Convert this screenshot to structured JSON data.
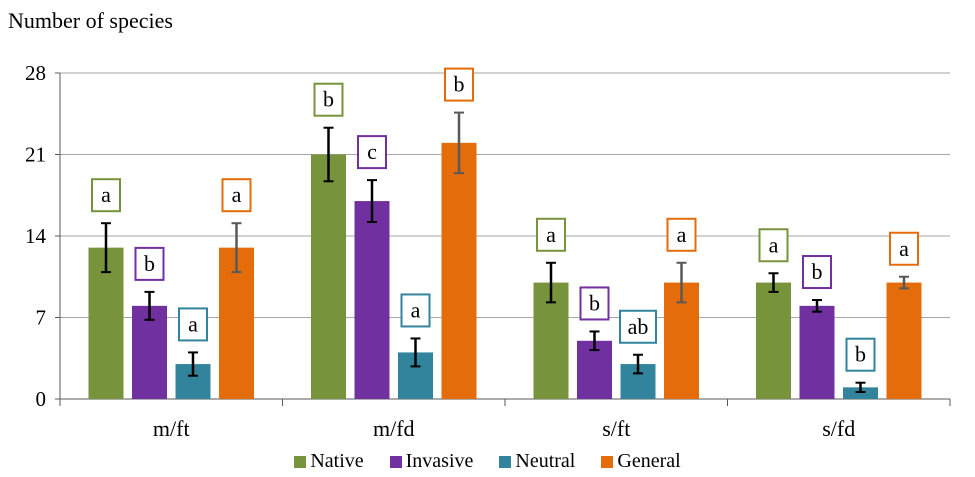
{
  "chart_data": {
    "type": "bar",
    "ylabel": "Number of species",
    "xlabel": "",
    "ylim": [
      0,
      28
    ],
    "yticks": [
      0,
      7,
      14,
      21,
      28
    ],
    "grid": true,
    "legend_position": "bottom",
    "categories": [
      "m/ft",
      "m/fd",
      "s/ft",
      "s/fd"
    ],
    "series": [
      {
        "name": "Native",
        "color": "#77933c",
        "values": [
          13,
          21,
          10,
          10
        ],
        "errors": [
          2.1,
          2.3,
          1.7,
          0.8
        ],
        "letters": [
          "a",
          "b",
          "a",
          "a"
        ]
      },
      {
        "name": "Invasive",
        "color": "#7030a0",
        "values": [
          8,
          17,
          5,
          8
        ],
        "errors": [
          1.2,
          1.8,
          0.8,
          0.5
        ],
        "letters": [
          "b",
          "c",
          "b",
          "b"
        ]
      },
      {
        "name": "Neutral",
        "color": "#31849b",
        "values": [
          3,
          4,
          3,
          1
        ],
        "errors": [
          1.0,
          1.2,
          0.8,
          0.4
        ],
        "letters": [
          "a",
          "a",
          "ab",
          "b"
        ]
      },
      {
        "name": "General",
        "color": "#e46c0a",
        "values": [
          13,
          22,
          10,
          10
        ],
        "errors": [
          2.1,
          2.6,
          1.7,
          0.5
        ],
        "letters": [
          "a",
          "b",
          "a",
          "a"
        ]
      }
    ]
  }
}
